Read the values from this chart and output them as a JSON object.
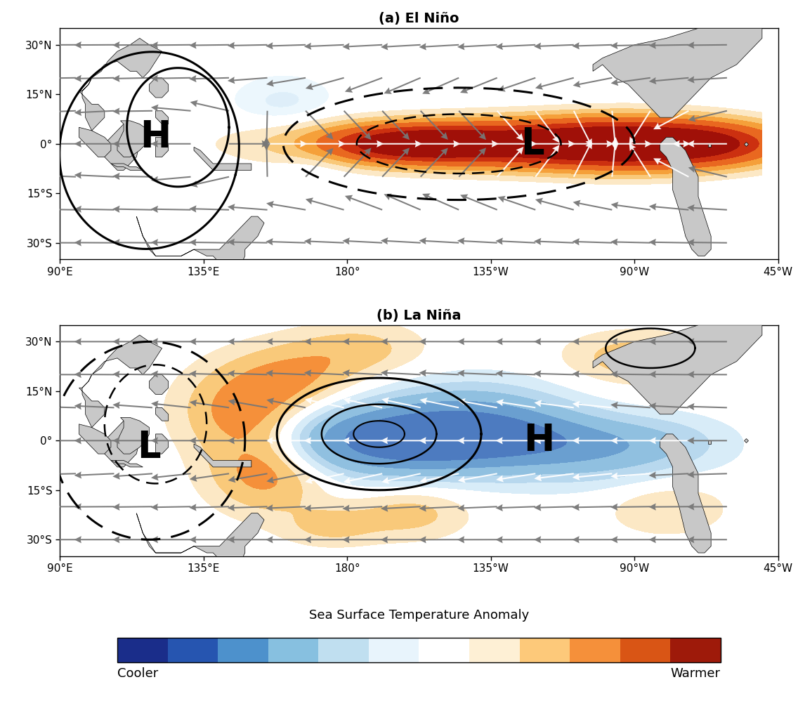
{
  "title_a": "(a) El Niño",
  "title_b": "(b) La Niña",
  "colorbar_title": "Sea Surface Temperature Anomaly",
  "colorbar_label_left": "Cooler",
  "colorbar_label_right": "Warmer",
  "lon_min": 90,
  "lon_max": 310,
  "lat_min": -35,
  "lat_max": 35,
  "xticks": [
    90,
    135,
    180,
    225,
    270,
    315
  ],
  "xtick_labels": [
    "90°E",
    "135°E",
    "180°",
    "135°W",
    "90°W",
    "45°W"
  ],
  "yticks": [
    -30,
    -15,
    0,
    15,
    30
  ],
  "ytick_labels": [
    "30°S",
    "15°S",
    "0°",
    "15°N",
    "30°N"
  ],
  "colorbar_colors": [
    "#1a2d8a",
    "#2655b0",
    "#4d91cc",
    "#87c0e0",
    "#c0dff0",
    "#e8f4fc",
    "#ffffff",
    "#fef0d5",
    "#fdc97a",
    "#f5903a",
    "#d95515",
    "#9e1a0a"
  ],
  "land_color": "#c8c8c8",
  "ocean_color": "#ffffff"
}
